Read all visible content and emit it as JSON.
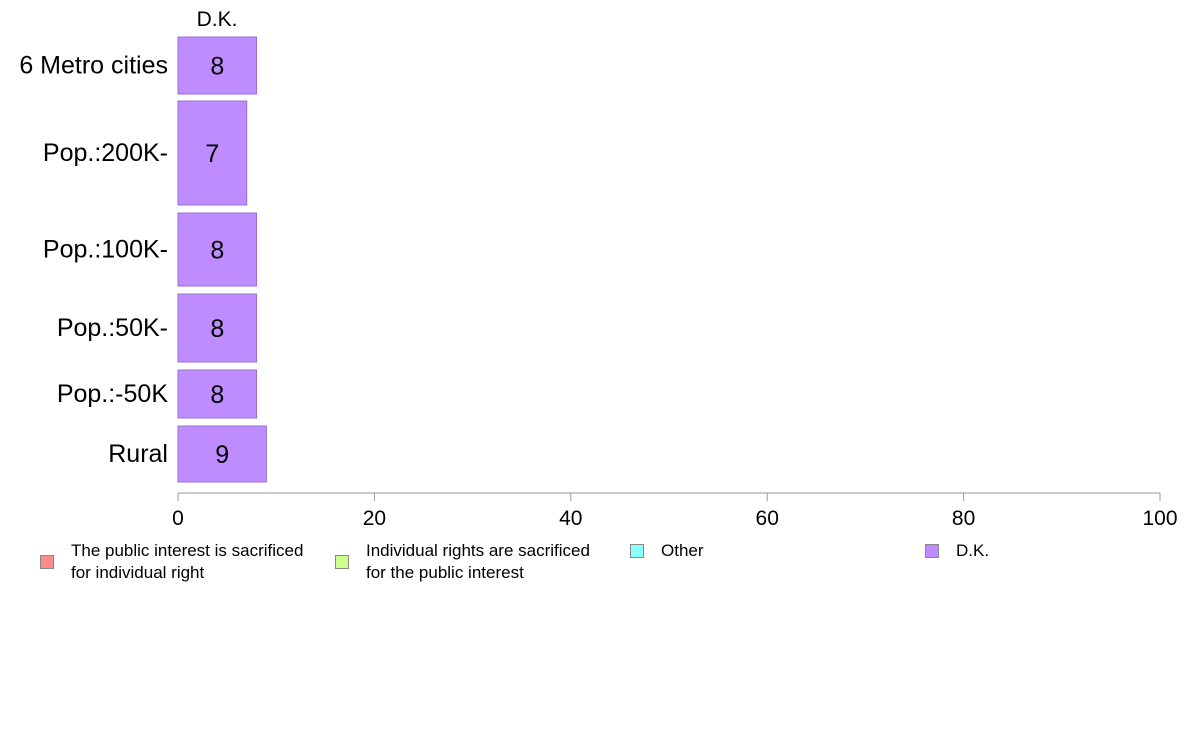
{
  "chart_data": {
    "type": "bar",
    "orientation": "horizontal",
    "stacked": true,
    "categories": [
      "6 Metro cities",
      "Pop.:200K-",
      "Pop.:100K-",
      "Pop.:50K-",
      "Pop.:-50K",
      "Rural"
    ],
    "series": [
      {
        "name": "The public interest is sacrificed\nfor individual right",
        "color": "#ff8c8c",
        "values": [
          0,
          0,
          0,
          0,
          0,
          0
        ]
      },
      {
        "name": "Individual rights are sacrificed\nfor the public interest",
        "color": "#ccff8c",
        "values": [
          0,
          0,
          0,
          0,
          0,
          0
        ]
      },
      {
        "name": "Other",
        "color": "#8cffff",
        "values": [
          0,
          0,
          0,
          0,
          0,
          0
        ]
      },
      {
        "name": "D.K.",
        "color": "#bf8cff",
        "values": [
          8,
          7,
          8,
          8,
          8,
          9
        ]
      }
    ],
    "data_labels": [
      "8",
      "7",
      "8",
      "8",
      "8",
      "9"
    ],
    "top_series_label": "D.K.",
    "xlim": [
      0,
      100
    ],
    "xticks": [
      "0",
      "20",
      "40",
      "60",
      "80",
      "100"
    ],
    "xlabel": "",
    "ylabel": "",
    "grid": false,
    "legend_position": "bottom"
  }
}
